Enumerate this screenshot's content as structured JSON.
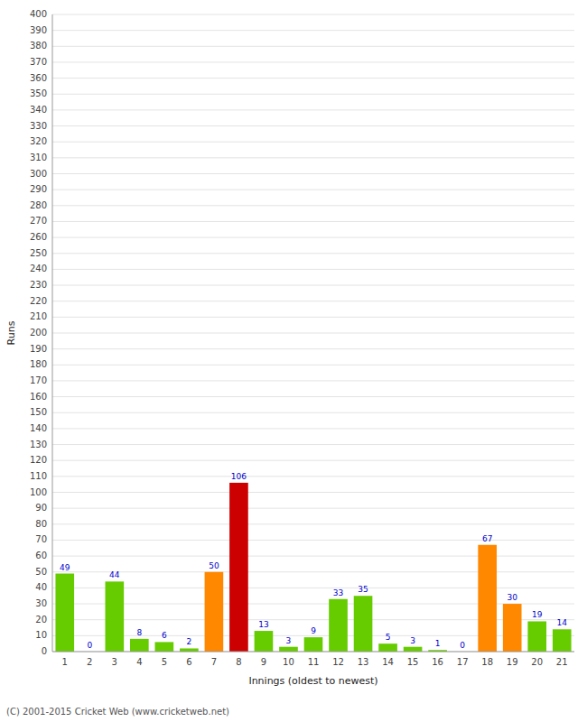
{
  "chart_data": {
    "type": "bar",
    "xlabel": "Innings (oldest to newest)",
    "ylabel": "Runs",
    "categories": [
      "1",
      "2",
      "3",
      "4",
      "5",
      "6",
      "7",
      "8",
      "9",
      "10",
      "11",
      "12",
      "13",
      "14",
      "15",
      "16",
      "17",
      "18",
      "19",
      "20",
      "21"
    ],
    "values": [
      49,
      0,
      44,
      8,
      6,
      2,
      50,
      106,
      13,
      3,
      9,
      33,
      35,
      5,
      3,
      1,
      0,
      67,
      30,
      19,
      14
    ],
    "colors": [
      "#66cc00",
      "#66cc00",
      "#66cc00",
      "#66cc00",
      "#66cc00",
      "#66cc00",
      "#ff8800",
      "#cc0000",
      "#66cc00",
      "#66cc00",
      "#66cc00",
      "#66cc00",
      "#66cc00",
      "#66cc00",
      "#66cc00",
      "#66cc00",
      "#66cc00",
      "#ff8800",
      "#ff8800",
      "#66cc00",
      "#66cc00"
    ],
    "ylim": [
      0,
      400
    ],
    "yticks": [
      0,
      10,
      20,
      30,
      40,
      50,
      60,
      70,
      80,
      90,
      100,
      110,
      120,
      130,
      140,
      150,
      160,
      170,
      180,
      190,
      200,
      210,
      220,
      230,
      240,
      250,
      260,
      270,
      280,
      290,
      300,
      310,
      320,
      330,
      340,
      350,
      360,
      370,
      380,
      390,
      400
    ],
    "grid": true,
    "data_labels": true,
    "annotations": [
      "(C) 2001-2015 Cricket Web (www.cricketweb.net)"
    ]
  }
}
